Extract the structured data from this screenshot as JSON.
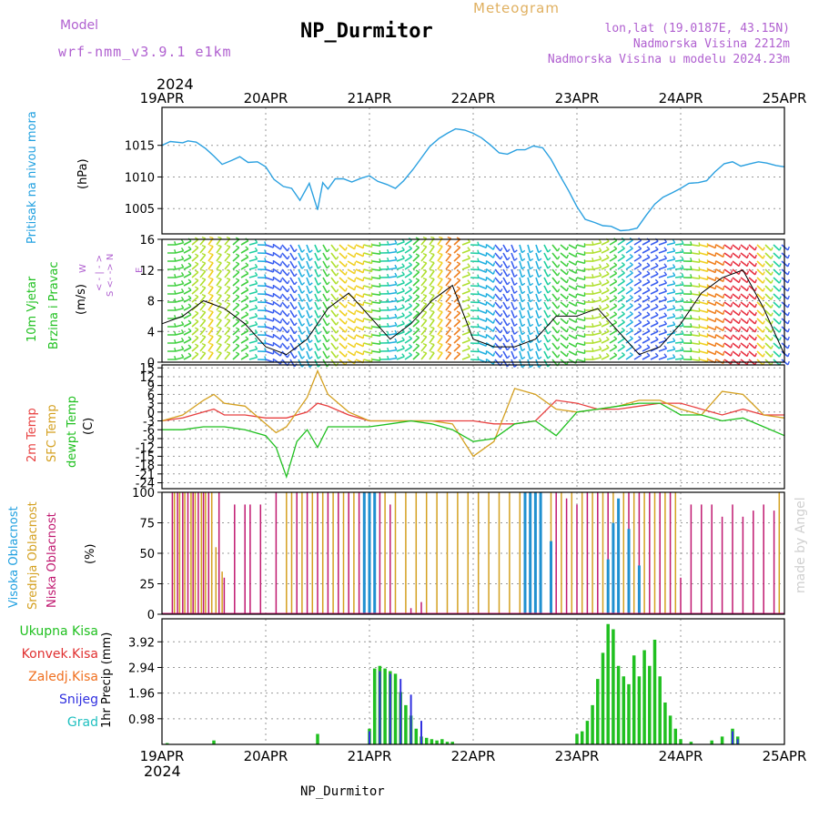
{
  "header": {
    "model_label": "Model",
    "model_name": "wrf-nmm_v3.9.1 e1km",
    "station": "NP_Durmitor",
    "product": "Meteogram",
    "lonlat": "lon,lat (19.0187E, 43.15N)",
    "elevation": "Nadmorska Visina 2212m",
    "model_elevation": "Nadmorska Visina u modelu 2024.23m",
    "year_top": "2024",
    "year_bottom": "2024",
    "footer_station": "NP_Durmitor",
    "watermark": "made by Angel"
  },
  "colors": {
    "pressure": "#2aa0e0",
    "temp2m": "#e84040",
    "sfc_temp": "#d4a020",
    "dewpoint": "#20c020",
    "high_cloud": "#2090d0",
    "mid_cloud": "#d4a020",
    "low_cloud": "#c01870",
    "total_precip": "#20c020",
    "convective": "#e03030",
    "frozen": "#f07020",
    "snow": "#3030e0",
    "hail": "#20c0c0",
    "label_purple": "#b060d0",
    "header_gold": "#e0b060"
  },
  "panel_labels": {
    "pressure": [
      "Pritisak na nivou mora"
    ],
    "pressure_unit": "(hPa)",
    "wind": [
      "10m Vjetar",
      "Brzina i Pravac"
    ],
    "wind_unit": "(m/s)",
    "wind_compass": [
      "W",
      "< - | - >",
      "E",
      "S <- -> N"
    ],
    "temp": [
      "2m Temp",
      "SFC Temp",
      "dewpt Temp"
    ],
    "temp_unit": "(C)",
    "cloud": [
      "Visoka Oblacnost",
      "Srednja Oblacnost",
      "Niska Oblacnost"
    ],
    "cloud_unit": "(%)",
    "precip_legend": [
      "Ukupna Kisa",
      "Konvek.Kisa",
      "Zaledj.Kisa",
      "Snijeg",
      "Grad"
    ],
    "precip_unit": "1hr Precip (mm)"
  },
  "chart_data": [
    {
      "type": "line",
      "name": "pressure",
      "x_categories": [
        "19APR",
        "20APR",
        "21APR",
        "22APR",
        "23APR",
        "24APR",
        "25APR"
      ],
      "yticks": [
        1005,
        1010,
        1015
      ],
      "ylim": [
        1001,
        1021
      ],
      "series": [
        {
          "name": "Pritisak na nivou mora",
          "color": "pressure",
          "x": [
            0,
            0.08,
            0.2,
            0.25,
            0.33,
            0.42,
            0.5,
            0.58,
            0.67,
            0.75,
            0.83,
            0.92,
            1.0,
            1.08,
            1.17,
            1.25,
            1.33,
            1.42,
            1.5,
            1.55,
            1.6,
            1.67,
            1.75,
            1.83,
            1.92,
            2.0,
            2.08,
            2.17,
            2.25,
            2.33,
            2.42,
            2.5,
            2.58,
            2.67,
            2.75,
            2.83,
            2.92,
            3.0,
            3.08,
            3.17,
            3.25,
            3.33,
            3.42,
            3.5,
            3.58,
            3.67,
            3.75,
            3.83,
            3.92,
            4.0,
            4.08,
            4.17,
            4.25,
            4.33,
            4.42,
            4.5,
            4.58,
            4.67,
            4.75,
            4.83,
            4.92,
            5.0,
            5.08,
            5.17,
            5.25,
            5.33,
            5.42,
            5.5,
            5.58,
            5.67,
            5.75,
            5.83,
            5.92,
            6.0
          ],
          "y": [
            1015.0,
            1015.6,
            1015.4,
            1015.7,
            1015.5,
            1014.5,
            1013.3,
            1012.0,
            1012.6,
            1013.2,
            1012.3,
            1012.4,
            1011.6,
            1009.6,
            1008.5,
            1008.2,
            1006.3,
            1009.0,
            1004.8,
            1009.1,
            1008.1,
            1009.7,
            1009.7,
            1009.2,
            1009.8,
            1010.2,
            1009.3,
            1008.8,
            1008.2,
            1009.4,
            1011.2,
            1013.0,
            1014.8,
            1016.1,
            1016.9,
            1017.6,
            1017.4,
            1016.9,
            1016.2,
            1015.0,
            1013.8,
            1013.6,
            1014.3,
            1014.3,
            1014.9,
            1014.6,
            1012.8,
            1010.4,
            1007.8,
            1005.3,
            1003.3,
            1002.8,
            1002.3,
            1002.2,
            1001.5,
            1001.6,
            1001.9,
            1004.0,
            1005.7,
            1006.8,
            1007.5,
            1008.2,
            1009.0,
            1009.1,
            1009.4,
            1010.8,
            1012.1,
            1012.4,
            1011.7,
            1012.1,
            1012.4,
            1012.2,
            1011.8,
            1011.6
          ]
        }
      ]
    },
    {
      "type": "line",
      "name": "wind",
      "yticks": [
        0,
        4,
        8,
        12,
        16
      ],
      "ylim": [
        0,
        16
      ],
      "series": [
        {
          "name": "10m wind speed",
          "color": "#000000",
          "x": [
            0,
            0.2,
            0.4,
            0.6,
            0.8,
            1.0,
            1.2,
            1.4,
            1.6,
            1.8,
            2.0,
            2.2,
            2.4,
            2.6,
            2.8,
            3.0,
            3.2,
            3.4,
            3.6,
            3.8,
            4.0,
            4.2,
            4.4,
            4.6,
            4.8,
            5.0,
            5.2,
            5.4,
            5.6,
            5.8,
            6.0
          ],
          "y": [
            5,
            6,
            8,
            7,
            5,
            2,
            1,
            3,
            7,
            9,
            6,
            3,
            5,
            8,
            10,
            3,
            2,
            2,
            3,
            6,
            6,
            7,
            4,
            1,
            2,
            5,
            9,
            11,
            12,
            7,
            1
          ]
        }
      ]
    },
    {
      "type": "line",
      "name": "temperature",
      "yticks": [
        15,
        12,
        9,
        6,
        3,
        0,
        -3,
        -6,
        -9,
        -12,
        -15,
        -18,
        -21,
        -24
      ],
      "ylim": [
        -26,
        16
      ],
      "series": [
        {
          "name": "2m Temp",
          "color": "temp2m",
          "x": [
            0,
            0.2,
            0.4,
            0.5,
            0.6,
            0.8,
            1.0,
            1.2,
            1.4,
            1.5,
            1.6,
            1.8,
            2.0,
            2.2,
            2.4,
            2.6,
            2.8,
            3.0,
            3.2,
            3.4,
            3.6,
            3.8,
            4.0,
            4.2,
            4.4,
            4.6,
            4.8,
            5.0,
            5.2,
            5.4,
            5.6,
            5.8,
            6.0
          ],
          "y": [
            -3,
            -2,
            0,
            1,
            -1,
            -1,
            -2,
            -2,
            0,
            3,
            2,
            -1,
            -3,
            -3,
            -3,
            -3,
            -3,
            -3,
            -4,
            -4,
            -3,
            4,
            3,
            1,
            1,
            2,
            3,
            3,
            1,
            -1,
            1,
            -1,
            -1
          ]
        },
        {
          "name": "SFC Temp",
          "color": "sfc_temp",
          "x": [
            0,
            0.2,
            0.4,
            0.5,
            0.6,
            0.8,
            1.0,
            1.1,
            1.2,
            1.4,
            1.5,
            1.6,
            1.8,
            2.0,
            2.2,
            2.4,
            2.6,
            2.8,
            3.0,
            3.2,
            3.4,
            3.6,
            3.8,
            4.0,
            4.2,
            4.4,
            4.6,
            4.8,
            5.0,
            5.2,
            5.4,
            5.6,
            5.8,
            6.0
          ],
          "y": [
            -3,
            -1,
            4,
            6,
            3,
            2,
            -4,
            -7,
            -5,
            5,
            14,
            6,
            0,
            -3,
            -3,
            -3,
            -3,
            -4,
            -15,
            -10,
            8,
            6,
            1,
            0,
            1,
            2,
            4,
            4,
            1,
            -1,
            7,
            6,
            -1,
            -2
          ]
        },
        {
          "name": "dewpt Temp",
          "color": "dewpoint",
          "x": [
            0,
            0.2,
            0.4,
            0.6,
            0.8,
            1.0,
            1.1,
            1.2,
            1.3,
            1.4,
            1.5,
            1.6,
            1.8,
            2.0,
            2.2,
            2.4,
            2.6,
            2.8,
            3.0,
            3.2,
            3.4,
            3.6,
            3.8,
            4.0,
            4.2,
            4.4,
            4.6,
            4.8,
            5.0,
            5.2,
            5.4,
            5.6,
            5.8,
            6.0
          ],
          "y": [
            -6,
            -6,
            -5,
            -5,
            -6,
            -8,
            -12,
            -22,
            -10,
            -6,
            -12,
            -5,
            -5,
            -5,
            -4,
            -3,
            -4,
            -6,
            -10,
            -9,
            -4,
            -3,
            -8,
            0,
            1,
            2,
            3,
            3,
            -1,
            -1,
            -3,
            -2,
            -5,
            -8
          ]
        }
      ]
    },
    {
      "type": "bar",
      "name": "cloud",
      "yticks": [
        0,
        25,
        50,
        75,
        100
      ],
      "ylim": [
        0,
        100
      ],
      "series": [
        {
          "name": "Niska Oblacnost",
          "color": "low_cloud",
          "x": [
            0.1,
            0.15,
            0.2,
            0.25,
            0.3,
            0.35,
            0.4,
            0.45,
            0.55,
            0.6,
            0.7,
            0.8,
            0.85,
            0.95,
            1.1,
            1.3,
            1.4,
            1.5,
            1.6,
            1.7,
            1.8,
            1.9,
            2.0,
            2.1,
            2.2,
            2.4,
            2.5,
            3.8,
            3.9,
            4.0,
            4.1,
            4.2,
            4.3,
            4.5,
            4.6,
            4.7,
            4.8,
            4.9,
            5.0,
            5.1,
            5.2,
            5.3,
            5.4,
            5.5,
            5.6,
            5.7,
            5.8,
            5.9
          ],
          "y": [
            100,
            100,
            100,
            100,
            100,
            100,
            100,
            100,
            100,
            30,
            90,
            90,
            90,
            90,
            100,
            100,
            100,
            100,
            100,
            100,
            100,
            100,
            100,
            100,
            90,
            5,
            10,
            100,
            95,
            90,
            100,
            100,
            100,
            100,
            100,
            100,
            100,
            100,
            30,
            90,
            90,
            90,
            80,
            90,
            80,
            85,
            90,
            85
          ]
        },
        {
          "name": "Srednja Oblacnost",
          "color": "mid_cloud",
          "x": [
            0.12,
            0.17,
            0.22,
            0.28,
            0.32,
            0.38,
            0.42,
            0.48,
            0.52,
            0.58,
            1.2,
            1.25,
            1.35,
            1.45,
            1.55,
            1.65,
            1.75,
            1.85,
            1.95,
            2.05,
            2.15,
            2.25,
            2.35,
            2.45,
            2.55,
            2.65,
            2.75,
            2.85,
            2.95,
            3.05,
            3.15,
            3.25,
            3.35,
            3.45,
            3.55,
            3.65,
            3.75,
            3.85,
            3.95,
            4.05,
            4.15,
            4.25,
            4.35,
            4.45,
            4.55,
            4.65,
            4.75,
            4.85,
            4.95,
            5.95
          ],
          "y": [
            100,
            100,
            100,
            100,
            100,
            100,
            100,
            100,
            55,
            35,
            100,
            100,
            100,
            100,
            100,
            100,
            100,
            100,
            100,
            100,
            100,
            100,
            100,
            100,
            100,
            100,
            100,
            100,
            100,
            100,
            100,
            100,
            100,
            100,
            100,
            100,
            100,
            100,
            100,
            100,
            100,
            100,
            100,
            100,
            100,
            100,
            100,
            100,
            100,
            100
          ]
        },
        {
          "name": "Visoka Oblacnost",
          "color": "high_cloud",
          "x": [
            1.95,
            2.0,
            2.05,
            3.5,
            3.55,
            3.6,
            3.65,
            3.75,
            4.3,
            4.35,
            4.4,
            4.5,
            4.6
          ],
          "y": [
            100,
            100,
            100,
            100,
            100,
            100,
            100,
            60,
            45,
            75,
            95,
            70,
            40
          ]
        }
      ]
    },
    {
      "type": "bar",
      "name": "precip",
      "yticks": [
        0.98,
        1.96,
        2.94,
        3.92
      ],
      "ylim": [
        0,
        4.8
      ],
      "series": [
        {
          "name": "Ukupna Kisa",
          "color": "total_precip",
          "x": [
            0.05,
            0.5,
            1.5,
            2.0,
            2.05,
            2.1,
            2.15,
            2.2,
            2.25,
            2.3,
            2.35,
            2.4,
            2.45,
            2.5,
            2.55,
            2.6,
            2.65,
            2.7,
            2.75,
            2.8,
            4.0,
            4.05,
            4.1,
            4.15,
            4.2,
            4.25,
            4.3,
            4.35,
            4.4,
            4.45,
            4.5,
            4.55,
            4.6,
            4.65,
            4.7,
            4.75,
            4.8,
            4.85,
            4.9,
            4.95,
            5.0,
            5.1,
            5.3,
            5.4,
            5.5,
            5.55
          ],
          "y": [
            0.05,
            0.15,
            0.4,
            0.6,
            2.9,
            3.0,
            2.9,
            2.8,
            2.7,
            2.0,
            1.5,
            1.1,
            0.6,
            0.3,
            0.25,
            0.2,
            0.15,
            0.2,
            0.1,
            0.1,
            0.4,
            0.5,
            0.9,
            1.5,
            2.5,
            3.5,
            4.6,
            4.4,
            3.0,
            2.6,
            2.3,
            3.4,
            2.6,
            3.6,
            3.0,
            4.0,
            2.6,
            1.6,
            1.1,
            0.6,
            0.2,
            0.1,
            0.15,
            0.3,
            0.6,
            0.3
          ]
        },
        {
          "name": "Snijeg",
          "color": "snow",
          "x": [
            2.0,
            2.1,
            2.2,
            2.3,
            2.4,
            2.5,
            5.5,
            5.55
          ],
          "y": [
            0.5,
            2.8,
            2.7,
            2.5,
            1.9,
            0.9,
            0.5,
            0.2
          ]
        }
      ]
    }
  ]
}
